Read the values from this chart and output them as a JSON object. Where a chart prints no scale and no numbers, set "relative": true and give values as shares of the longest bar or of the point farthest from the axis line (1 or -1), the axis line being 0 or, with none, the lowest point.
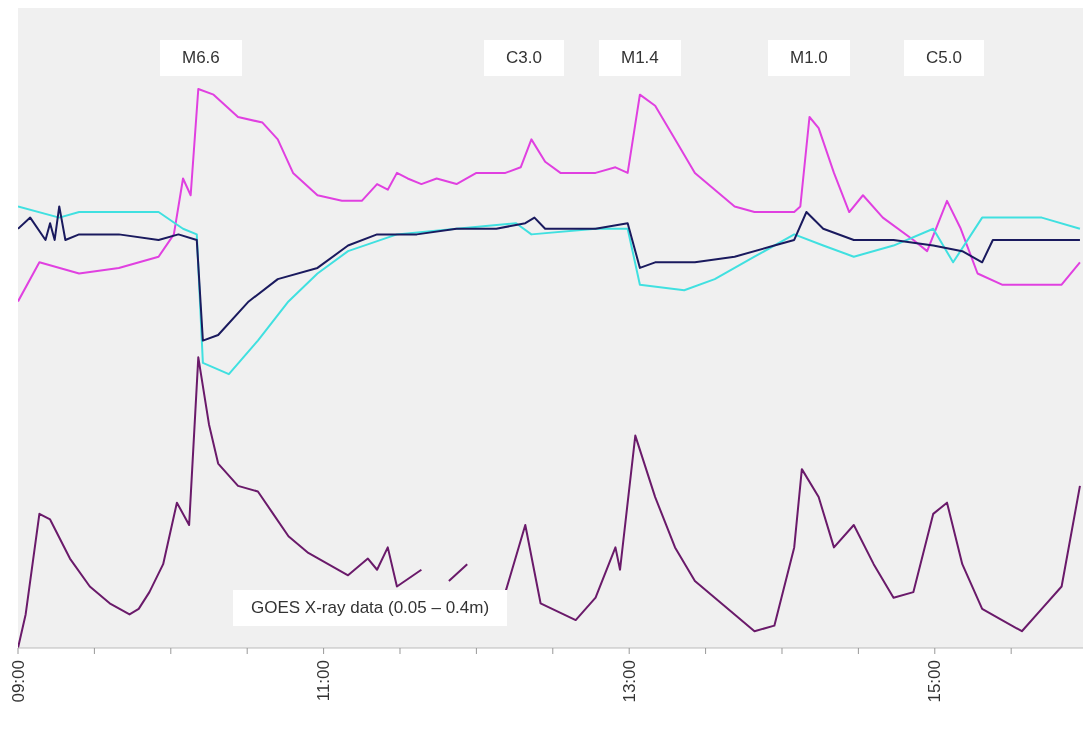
{
  "chart_data": {
    "type": "line",
    "relative": true,
    "xlim": [
      9,
      15.97
    ],
    "xticks": [
      {
        "value": 9,
        "label": "09:00"
      },
      {
        "value": 9.5,
        "label": null
      },
      {
        "value": 10,
        "label": null
      },
      {
        "value": 10.5,
        "label": null
      },
      {
        "value": 11,
        "label": "11:00"
      },
      {
        "value": 11.5,
        "label": null
      },
      {
        "value": 12,
        "label": null
      },
      {
        "value": 12.5,
        "label": null
      },
      {
        "value": 13,
        "label": "13:00"
      },
      {
        "value": 13.5,
        "label": null
      },
      {
        "value": 14,
        "label": null
      },
      {
        "value": 14.5,
        "label": null
      },
      {
        "value": 15,
        "label": "15:00"
      },
      {
        "value": 15.5,
        "label": null
      }
    ],
    "grid": false,
    "marker": "none",
    "line_style": "solid",
    "tick_labels": "x",
    "annotations": [
      "M6.6",
      "C3.0",
      "M1.4",
      "M1.0",
      "C5.0",
      "GOES X-ray data (0.05 – 0.4m)"
    ],
    "series": [
      {
        "color": "#e040e0",
        "x": [
          9.0,
          9.14,
          9.4,
          9.66,
          9.92,
          10.02,
          10.08,
          10.13,
          10.18,
          10.28,
          10.44,
          10.6,
          10.7,
          10.8,
          10.96,
          11.12,
          11.25,
          11.35,
          11.42,
          11.48,
          11.55,
          11.64,
          11.74,
          11.87,
          12.0,
          12.19,
          12.29,
          12.36,
          12.45,
          12.55,
          12.78,
          12.91,
          12.99,
          13.07,
          13.17,
          13.3,
          13.43,
          13.56,
          13.69,
          13.82,
          14.08,
          14.12,
          14.18,
          14.24,
          14.34,
          14.44,
          14.53,
          14.66,
          14.86,
          14.95,
          15.08,
          15.17,
          15.28,
          15.44,
          15.7,
          15.83,
          15.95
        ],
        "values": [
          0.62,
          0.69,
          0.67,
          0.68,
          0.7,
          0.74,
          0.84,
          0.81,
          1.0,
          0.99,
          0.95,
          0.94,
          0.91,
          0.85,
          0.81,
          0.8,
          0.8,
          0.83,
          0.82,
          0.85,
          0.84,
          0.83,
          0.84,
          0.83,
          0.85,
          0.85,
          0.86,
          0.91,
          0.87,
          0.85,
          0.85,
          0.86,
          0.85,
          0.99,
          0.97,
          0.91,
          0.85,
          0.82,
          0.79,
          0.78,
          0.78,
          0.79,
          0.95,
          0.93,
          0.85,
          0.78,
          0.81,
          0.77,
          0.73,
          0.71,
          0.8,
          0.75,
          0.67,
          0.65,
          0.65,
          0.65,
          0.69
        ]
      },
      {
        "color": "#40e0e0",
        "x": [
          9.0,
          9.27,
          9.4,
          9.92,
          10.08,
          10.17,
          10.21,
          10.38,
          10.57,
          10.77,
          10.96,
          11.16,
          11.48,
          11.87,
          12.26,
          12.36,
          12.78,
          12.99,
          13.07,
          13.36,
          13.56,
          13.82,
          14.08,
          14.27,
          14.47,
          14.73,
          14.99,
          15.12,
          15.31,
          15.7,
          15.95
        ],
        "values": [
          0.79,
          0.77,
          0.78,
          0.78,
          0.75,
          0.74,
          0.51,
          0.49,
          0.55,
          0.62,
          0.67,
          0.71,
          0.74,
          0.75,
          0.76,
          0.74,
          0.75,
          0.75,
          0.65,
          0.64,
          0.66,
          0.7,
          0.74,
          0.72,
          0.7,
          0.72,
          0.75,
          0.69,
          0.77,
          0.77,
          0.75
        ]
      },
      {
        "color": "#1a1a5e",
        "x": [
          9.0,
          9.08,
          9.18,
          9.21,
          9.24,
          9.27,
          9.31,
          9.4,
          9.66,
          9.92,
          10.05,
          10.17,
          10.21,
          10.31,
          10.51,
          10.7,
          10.96,
          11.16,
          11.35,
          11.61,
          11.87,
          12.13,
          12.32,
          12.38,
          12.45,
          12.78,
          12.99,
          13.07,
          13.17,
          13.43,
          13.69,
          13.95,
          14.08,
          14.16,
          14.27,
          14.47,
          14.73,
          14.99,
          15.18,
          15.31,
          15.38,
          15.7,
          15.95
        ],
        "values": [
          0.75,
          0.77,
          0.73,
          0.76,
          0.73,
          0.79,
          0.73,
          0.74,
          0.74,
          0.73,
          0.74,
          0.73,
          0.55,
          0.56,
          0.62,
          0.66,
          0.68,
          0.72,
          0.74,
          0.74,
          0.75,
          0.75,
          0.76,
          0.77,
          0.75,
          0.75,
          0.76,
          0.68,
          0.69,
          0.69,
          0.7,
          0.72,
          0.73,
          0.78,
          0.75,
          0.73,
          0.73,
          0.72,
          0.71,
          0.69,
          0.73,
          0.73,
          0.73
        ]
      },
      {
        "color": "#6a1a6a",
        "x": [
          9.0,
          9.05,
          9.14,
          9.21,
          9.34,
          9.47,
          9.6,
          9.73,
          9.79,
          9.86,
          9.95,
          10.04,
          10.12,
          10.18,
          10.25,
          10.31,
          10.44,
          10.57,
          10.67,
          10.77,
          10.9,
          11.03,
          11.16,
          11.29,
          11.35,
          11.42,
          11.48,
          11.64,
          11.74,
          11.82,
          11.94,
          12.06,
          12.19,
          12.32,
          12.42,
          12.65,
          12.78,
          12.91,
          12.94,
          13.04,
          13.17,
          13.3,
          13.43,
          13.56,
          13.69,
          13.82,
          13.95,
          14.08,
          14.13,
          14.24,
          14.34,
          14.47,
          14.6,
          14.73,
          14.86,
          14.99,
          15.08,
          15.18,
          15.31,
          15.44,
          15.57,
          15.7,
          15.83,
          15.95
        ],
        "values": [
          0,
          0.06,
          0.24,
          0.23,
          0.16,
          0.11,
          0.08,
          0.06,
          0.07,
          0.1,
          0.15,
          0.26,
          0.22,
          0.52,
          0.4,
          0.33,
          0.29,
          0.28,
          0.24,
          0.2,
          0.17,
          0.15,
          0.13,
          0.16,
          0.14,
          0.18,
          0.11,
          0.14,
          null,
          0.12,
          0.15,
          null,
          0.1,
          0.22,
          0.08,
          0.05,
          0.09,
          0.18,
          0.14,
          0.38,
          0.27,
          0.18,
          0.12,
          0.09,
          0.06,
          0.03,
          0.04,
          0.18,
          0.32,
          0.27,
          0.18,
          0.22,
          0.15,
          0.09,
          0.1,
          0.24,
          0.26,
          0.15,
          0.07,
          0.05,
          0.03,
          0.07,
          0.11,
          0.29
        ]
      }
    ]
  }
}
